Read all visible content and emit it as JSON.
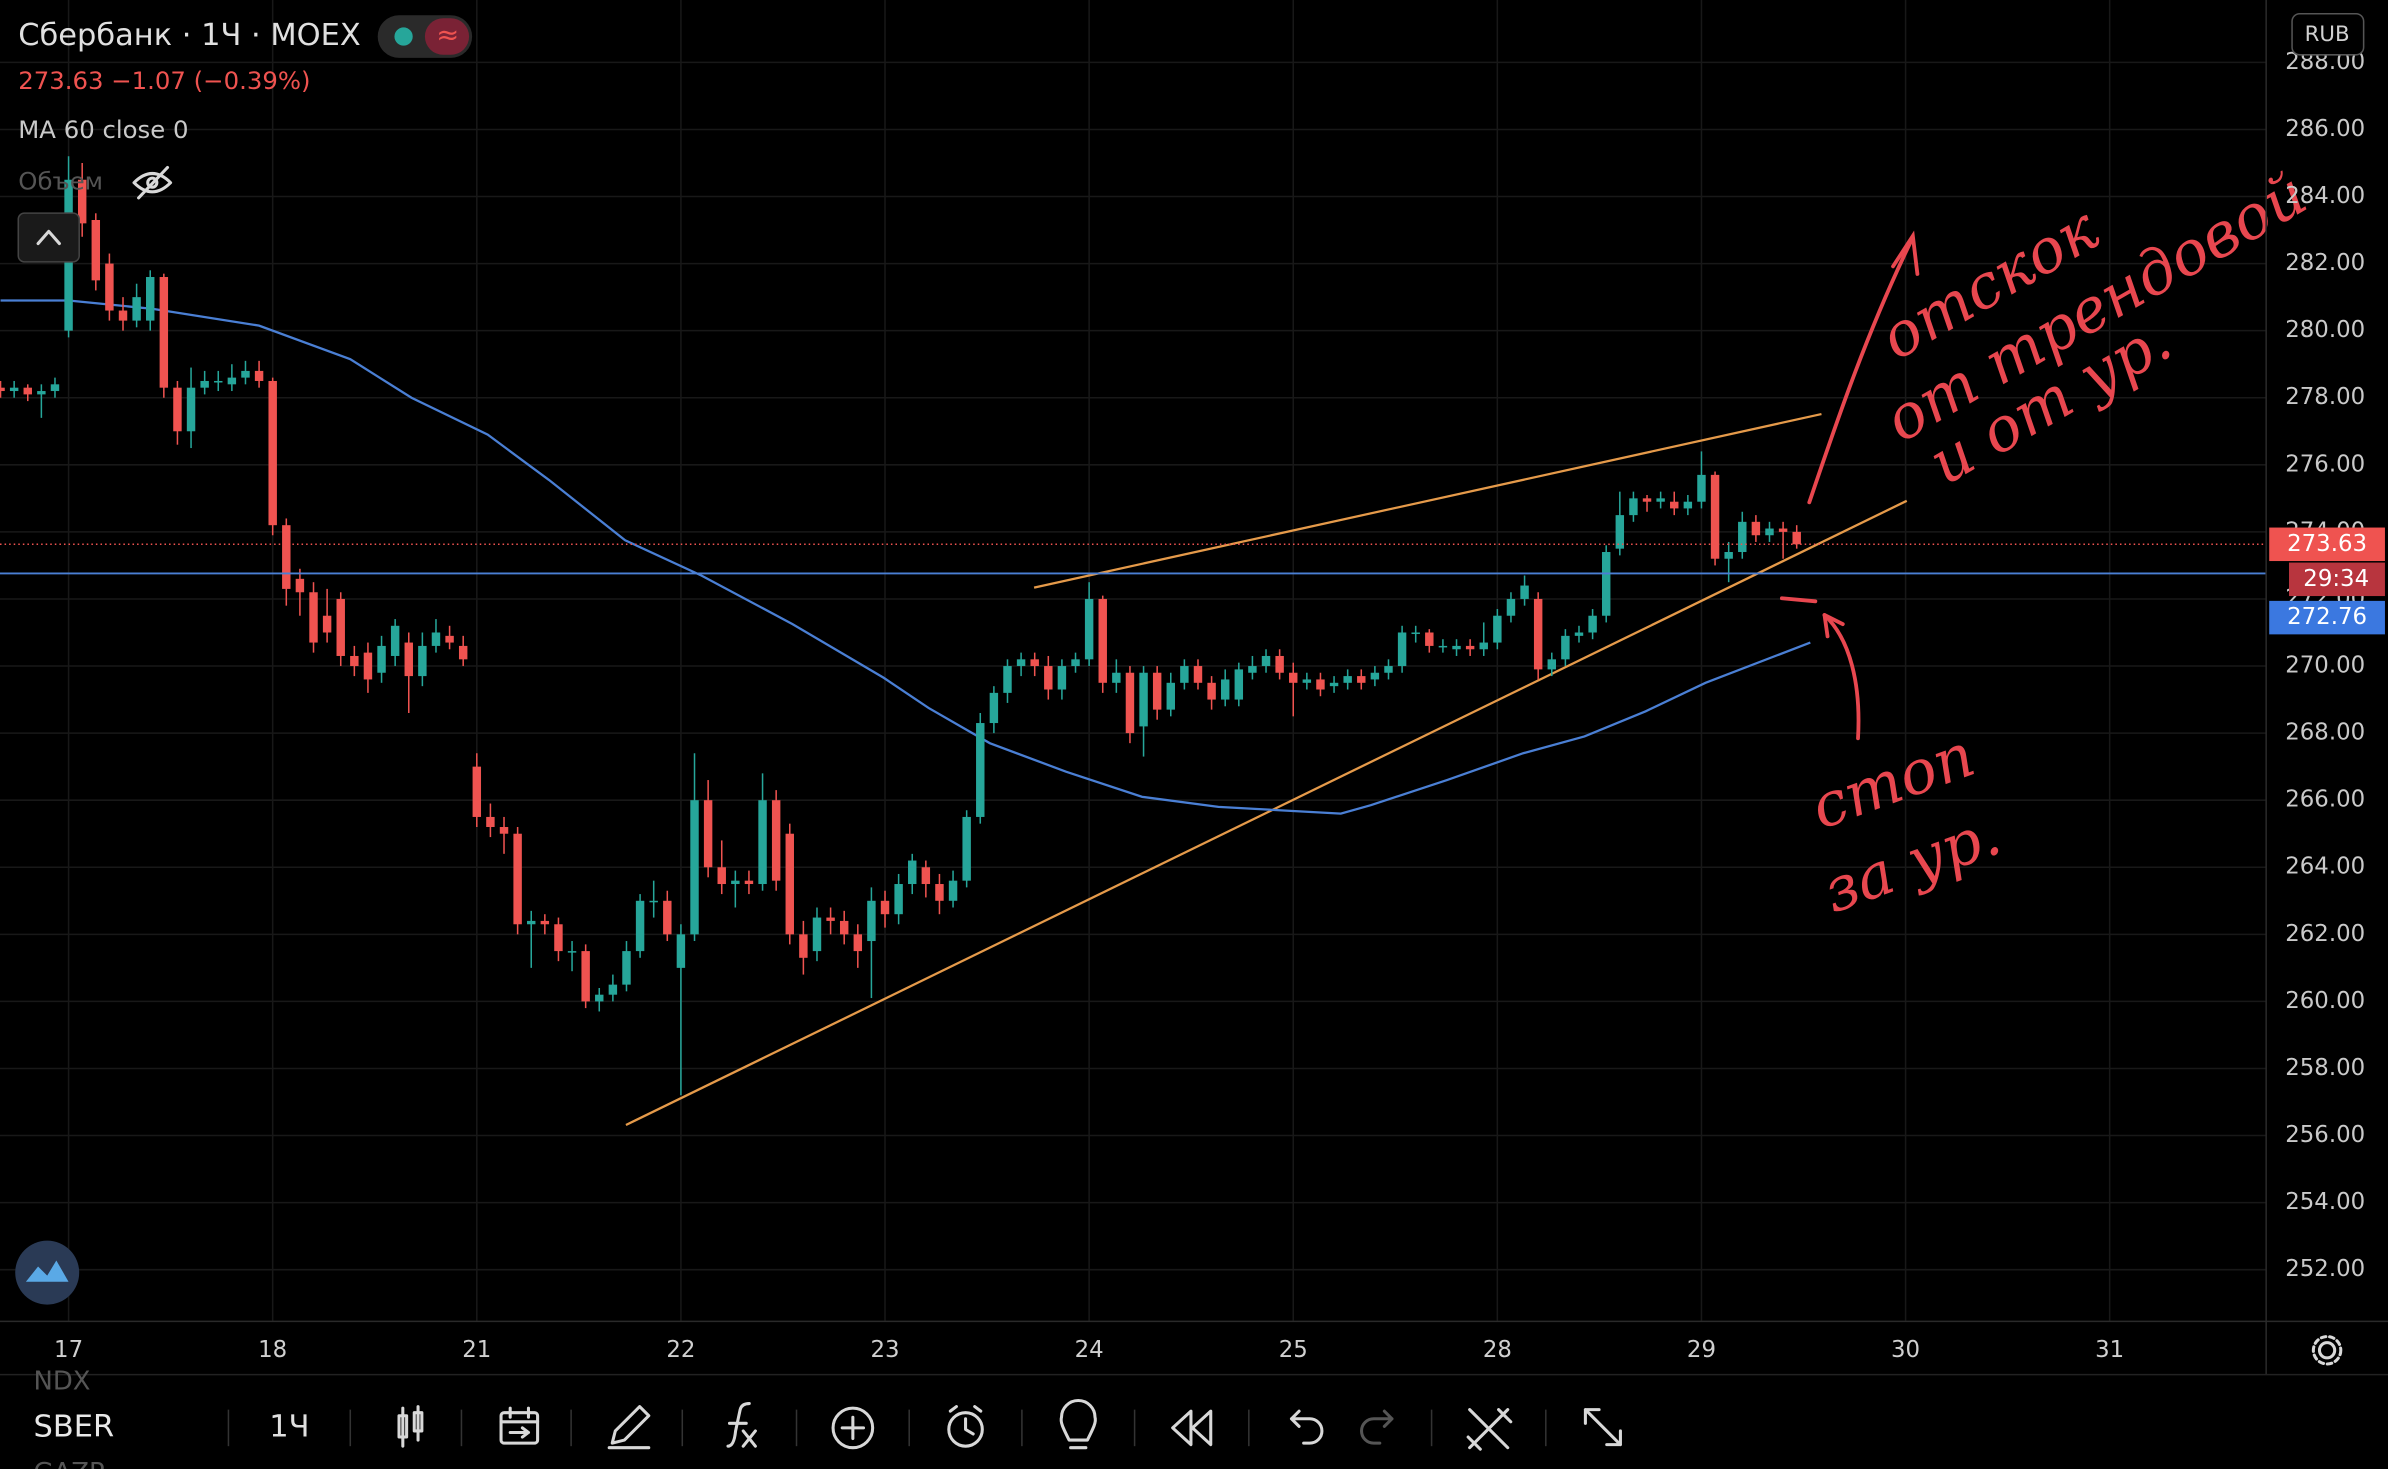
{
  "chart_data": {
    "type": "candlestick",
    "title": "Сбербанк · 1Ч · MOEX",
    "subtitle": "273.63 −1.07 (−0.39%)",
    "indicator": "MA 60 close 0",
    "volume_label": "Объем",
    "currency": "RUB",
    "countdown": "29:34",
    "level": 272.76,
    "up_color": "#26a69a",
    "down_color": "#ef5350",
    "ma_color": "#4a7fd4",
    "grid": true,
    "xlim": [
      -5.04,
      161.5
    ],
    "ylim": [
      250.46,
      289.86
    ],
    "xticks": [
      {
        "value": 0,
        "label": "17"
      },
      {
        "value": 15,
        "label": "18"
      },
      {
        "value": 30,
        "label": "21"
      },
      {
        "value": 45,
        "label": "22"
      },
      {
        "value": 60,
        "label": "23"
      },
      {
        "value": 75,
        "label": "24"
      },
      {
        "value": 90,
        "label": "25"
      },
      {
        "value": 105,
        "label": "28"
      },
      {
        "value": 120,
        "label": "29"
      },
      {
        "value": 135,
        "label": "30"
      },
      {
        "value": 150,
        "label": "31"
      }
    ],
    "yticks": [
      {
        "value": 252,
        "label": "252.00"
      },
      {
        "value": 254,
        "label": "254.00"
      },
      {
        "value": 256,
        "label": "256.00"
      },
      {
        "value": 258,
        "label": "258.00"
      },
      {
        "value": 260,
        "label": "260.00"
      },
      {
        "value": 262,
        "label": "262.00"
      },
      {
        "value": 264,
        "label": "264.00"
      },
      {
        "value": 266,
        "label": "266.00"
      },
      {
        "value": 268,
        "label": "268.00"
      },
      {
        "value": 270,
        "label": "270.00"
      },
      {
        "value": 272,
        "label": "272.00"
      },
      {
        "value": 274,
        "label": "274.00"
      },
      {
        "value": 276,
        "label": "276.00"
      },
      {
        "value": 278,
        "label": "278.00"
      },
      {
        "value": 280,
        "label": "280.00"
      },
      {
        "value": 282,
        "label": "282.00"
      },
      {
        "value": 284,
        "label": "284.00"
      },
      {
        "value": 286,
        "label": "286.00"
      },
      {
        "value": 288,
        "label": "288.00"
      }
    ],
    "x": [
      -5,
      -4,
      -3,
      -2,
      -1,
      0,
      1,
      2,
      3,
      4,
      5,
      6,
      7,
      8,
      9,
      10,
      11,
      12,
      13,
      14,
      15,
      16,
      17,
      18,
      19,
      20,
      21,
      22,
      23,
      24,
      25,
      26,
      27,
      28,
      29,
      30,
      31,
      32,
      33,
      34,
      35,
      36,
      37,
      38,
      39,
      40,
      41,
      42,
      43,
      44,
      45,
      46,
      47,
      48,
      49,
      50,
      51,
      52,
      53,
      54,
      55,
      56,
      57,
      58,
      59,
      60,
      61,
      62,
      63,
      64,
      65,
      66,
      67,
      68,
      69,
      70,
      71,
      72,
      73,
      74,
      75,
      76,
      77,
      78,
      79,
      80,
      81,
      82,
      83,
      84,
      85,
      86,
      87,
      88,
      89,
      90,
      91,
      92,
      93,
      94,
      95,
      96,
      97,
      98,
      99,
      100,
      101,
      102,
      103,
      104,
      105,
      106,
      107,
      108,
      109,
      110,
      111,
      112,
      113,
      114,
      115,
      116,
      117,
      118,
      119,
      120,
      121,
      122,
      123,
      124,
      125,
      126,
      127
    ],
    "open": [
      278.3,
      278.2,
      278.3,
      278.1,
      278.2,
      280.0,
      284.5,
      283.3,
      282.0,
      280.6,
      280.3,
      280.3,
      281.6,
      278.3,
      277.0,
      278.3,
      278.5,
      278.4,
      278.6,
      278.8,
      278.5,
      274.2,
      272.6,
      272.2,
      271.5,
      272.0,
      270.3,
      270.4,
      269.8,
      270.3,
      270.7,
      269.7,
      270.6,
      270.9,
      270.6,
      267.0,
      265.5,
      265.2,
      265.0,
      262.3,
      262.4,
      262.3,
      261.5,
      261.5,
      260.0,
      260.2,
      260.5,
      261.5,
      263.0,
      263.0,
      261.0,
      262.0,
      266.0,
      264.0,
      263.5,
      263.6,
      263.5,
      266.0,
      265.0,
      262.0,
      261.5,
      262.5,
      262.4,
      262.0,
      261.8,
      263.0,
      262.6,
      263.5,
      264.0,
      263.5,
      263.0,
      263.6,
      265.5,
      268.3,
      269.2,
      270.0,
      270.2,
      270.0,
      269.3,
      270.0,
      270.2,
      272.0,
      269.5,
      269.8,
      268.2,
      269.8,
      268.7,
      269.5,
      270.0,
      269.5,
      269.0,
      269.0,
      269.8,
      270.0,
      270.3,
      269.8,
      269.5,
      269.6,
      269.4,
      269.5,
      269.7,
      269.6,
      269.8,
      270.0,
      271.0,
      271.0,
      270.6,
      270.5,
      270.6,
      270.5,
      270.7,
      271.5,
      272.0,
      272.0,
      269.9,
      270.2,
      270.9,
      271.0,
      271.5,
      273.5,
      274.5,
      275.0,
      274.9,
      274.9,
      274.7,
      274.9,
      275.7,
      273.2,
      273.4,
      274.3,
      273.9,
      274.1,
      274.0
    ],
    "high": [
      278.5,
      278.5,
      278.4,
      278.4,
      278.6,
      285.2,
      285.0,
      283.5,
      282.3,
      281.0,
      281.4,
      281.8,
      281.7,
      278.5,
      278.9,
      278.8,
      278.8,
      279.0,
      279.1,
      279.1,
      278.6,
      274.4,
      272.9,
      272.5,
      272.3,
      272.2,
      270.6,
      270.7,
      270.9,
      271.4,
      271.0,
      271.0,
      271.4,
      271.2,
      270.9,
      267.4,
      265.9,
      265.5,
      265.2,
      262.7,
      262.6,
      262.5,
      261.8,
      261.7,
      260.4,
      260.8,
      261.8,
      263.2,
      263.6,
      263.3,
      262.3,
      267.4,
      266.6,
      264.8,
      263.9,
      263.9,
      266.8,
      266.3,
      265.3,
      262.4,
      262.8,
      262.8,
      262.7,
      262.3,
      263.4,
      263.3,
      263.8,
      264.4,
      264.2,
      263.8,
      263.9,
      265.7,
      268.6,
      269.4,
      270.2,
      270.4,
      270.4,
      270.3,
      270.2,
      270.4,
      272.5,
      272.1,
      270.2,
      270.0,
      270.0,
      270.0,
      269.8,
      270.2,
      270.2,
      269.7,
      269.9,
      270.1,
      270.3,
      270.5,
      270.5,
      270.1,
      269.8,
      269.8,
      269.7,
      269.9,
      269.9,
      270.0,
      270.2,
      271.2,
      271.2,
      271.1,
      270.8,
      270.8,
      270.8,
      271.3,
      271.7,
      272.2,
      272.7,
      272.2,
      270.4,
      271.1,
      271.2,
      271.7,
      273.6,
      275.2,
      275.2,
      275.1,
      275.2,
      275.2,
      275.1,
      276.4,
      275.8,
      273.7,
      274.6,
      274.5,
      274.3,
      274.3,
      274.2
    ],
    "low": [
      278.0,
      278.0,
      277.9,
      277.4,
      278.0,
      279.8,
      282.8,
      281.2,
      280.3,
      280.0,
      280.1,
      280.0,
      278.0,
      276.6,
      276.5,
      278.1,
      278.2,
      278.2,
      278.4,
      278.3,
      273.9,
      271.8,
      271.5,
      270.4,
      270.7,
      270.0,
      269.7,
      269.2,
      269.5,
      270.0,
      268.6,
      269.4,
      270.4,
      270.5,
      270.0,
      265.2,
      264.9,
      264.4,
      262.0,
      261.0,
      262.0,
      261.2,
      260.9,
      259.8,
      259.7,
      260.0,
      260.3,
      261.3,
      262.5,
      261.8,
      257.2,
      261.8,
      263.7,
      263.2,
      262.8,
      263.2,
      263.3,
      263.3,
      261.7,
      260.8,
      261.2,
      262.0,
      261.7,
      261.0,
      260.1,
      262.2,
      262.3,
      263.2,
      263.1,
      262.6,
      262.8,
      263.4,
      265.3,
      268.0,
      268.9,
      269.7,
      269.7,
      269.0,
      269.0,
      269.8,
      270.0,
      269.2,
      269.2,
      267.7,
      267.3,
      268.4,
      268.5,
      269.3,
      269.3,
      268.7,
      268.8,
      268.8,
      269.6,
      269.8,
      269.6,
      268.5,
      269.3,
      269.1,
      269.2,
      269.3,
      269.3,
      269.4,
      269.6,
      269.8,
      270.7,
      270.4,
      270.4,
      270.3,
      270.3,
      270.3,
      270.5,
      271.3,
      271.8,
      269.6,
      269.7,
      270.0,
      270.7,
      270.8,
      271.3,
      273.3,
      274.3,
      274.6,
      274.7,
      274.5,
      274.5,
      274.7,
      273.0,
      272.5,
      273.2,
      273.7,
      273.7,
      273.2,
      273.5
    ],
    "close": [
      278.2,
      278.3,
      278.1,
      278.2,
      278.4,
      284.5,
      283.2,
      281.5,
      280.6,
      280.3,
      281.0,
      281.6,
      278.3,
      277.0,
      278.3,
      278.5,
      278.5,
      278.6,
      278.8,
      278.5,
      274.2,
      272.3,
      272.2,
      270.7,
      271.0,
      270.3,
      270.0,
      269.6,
      270.6,
      271.2,
      269.7,
      270.6,
      271.0,
      270.7,
      270.2,
      265.5,
      265.2,
      265.0,
      262.3,
      262.4,
      262.3,
      261.5,
      261.5,
      260.0,
      260.2,
      260.5,
      261.5,
      263.0,
      263.0,
      262.0,
      262.0,
      266.0,
      264.0,
      263.5,
      263.6,
      263.5,
      266.0,
      263.6,
      262.0,
      261.3,
      262.5,
      262.4,
      262.0,
      261.5,
      263.0,
      262.6,
      263.5,
      264.2,
      263.5,
      263.0,
      263.6,
      265.5,
      268.3,
      269.2,
      270.0,
      270.2,
      270.0,
      269.3,
      270.0,
      270.2,
      272.0,
      269.5,
      269.8,
      268.0,
      269.8,
      268.7,
      269.5,
      270.0,
      269.5,
      269.0,
      269.6,
      269.9,
      270.0,
      270.3,
      269.8,
      269.5,
      269.6,
      269.3,
      269.5,
      269.7,
      269.5,
      269.8,
      270.0,
      271.0,
      271.0,
      270.6,
      270.6,
      270.6,
      270.5,
      270.7,
      271.5,
      272.0,
      272.4,
      269.9,
      270.2,
      270.9,
      271.0,
      271.5,
      273.4,
      274.5,
      275.0,
      274.9,
      275.0,
      274.7,
      274.9,
      275.7,
      273.2,
      273.4,
      274.3,
      273.9,
      274.1,
      274.0,
      273.63
    ],
    "ma": {
      "x": [
        -5.0,
        0,
        6.2,
        14,
        20.7,
        25.2,
        30.8,
        35.3,
        40.9,
        46.5,
        53.2,
        59.9,
        63.2,
        67.7,
        73.3,
        78.9,
        84.5,
        93.5,
        95.7,
        101.3,
        106.9,
        111.4,
        115.9,
        120.3,
        128
      ],
      "values": [
        280.9,
        280.9,
        280.65,
        280.15,
        279.15,
        278.0,
        276.9,
        275.55,
        273.75,
        272.7,
        271.25,
        269.65,
        268.75,
        267.7,
        266.85,
        266.1,
        265.8,
        265.6,
        265.85,
        266.6,
        267.4,
        267.9,
        268.65,
        269.5,
        270.7
      ]
    },
    "annotations": [
      "отскок",
      "от трендовой",
      "и от ур.",
      "стоп",
      "за ур."
    ]
  },
  "toolbar": {
    "symbol": "SBER",
    "interval": "1Ч",
    "watch_prev": "NDX",
    "watch_next": "GAZP"
  }
}
